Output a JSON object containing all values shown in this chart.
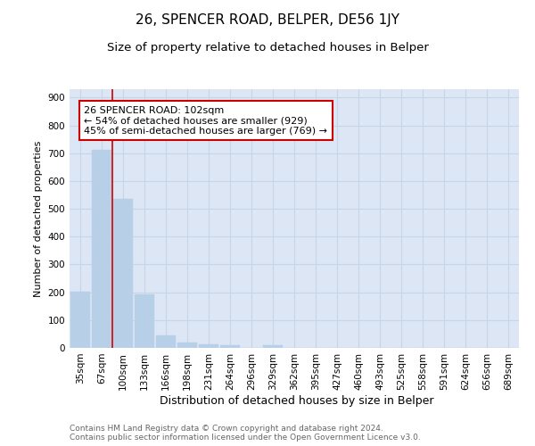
{
  "title1": "26, SPENCER ROAD, BELPER, DE56 1JY",
  "title2": "Size of property relative to detached houses in Belper",
  "xlabel": "Distribution of detached houses by size in Belper",
  "ylabel": "Number of detached properties",
  "bar_labels": [
    "35sqm",
    "67sqm",
    "100sqm",
    "133sqm",
    "166sqm",
    "198sqm",
    "231sqm",
    "264sqm",
    "296sqm",
    "329sqm",
    "362sqm",
    "395sqm",
    "427sqm",
    "460sqm",
    "493sqm",
    "525sqm",
    "558sqm",
    "591sqm",
    "624sqm",
    "656sqm",
    "689sqm"
  ],
  "bar_values": [
    201,
    712,
    537,
    192,
    46,
    18,
    14,
    11,
    0,
    9,
    0,
    0,
    0,
    0,
    0,
    0,
    0,
    0,
    0,
    0,
    0
  ],
  "bar_color": "#b8cfe8",
  "bar_edge_color": "#b8cfe8",
  "grid_color": "#c8d4e8",
  "background_color": "#dce6f5",
  "vline_x_idx": 2,
  "vline_color": "#cc0000",
  "annotation_text": "26 SPENCER ROAD: 102sqm\n← 54% of detached houses are smaller (929)\n45% of semi-detached houses are larger (769) →",
  "annotation_box_color": "#ffffff",
  "annotation_box_edge_color": "#cc0000",
  "ylim": [
    0,
    930
  ],
  "yticks": [
    0,
    100,
    200,
    300,
    400,
    500,
    600,
    700,
    800,
    900
  ],
  "footer": "Contains HM Land Registry data © Crown copyright and database right 2024.\nContains public sector information licensed under the Open Government Licence v3.0.",
  "title1_fontsize": 11,
  "title2_fontsize": 9.5,
  "xlabel_fontsize": 9,
  "ylabel_fontsize": 8,
  "tick_fontsize": 7.5,
  "annotation_fontsize": 8,
  "footer_fontsize": 6.5
}
